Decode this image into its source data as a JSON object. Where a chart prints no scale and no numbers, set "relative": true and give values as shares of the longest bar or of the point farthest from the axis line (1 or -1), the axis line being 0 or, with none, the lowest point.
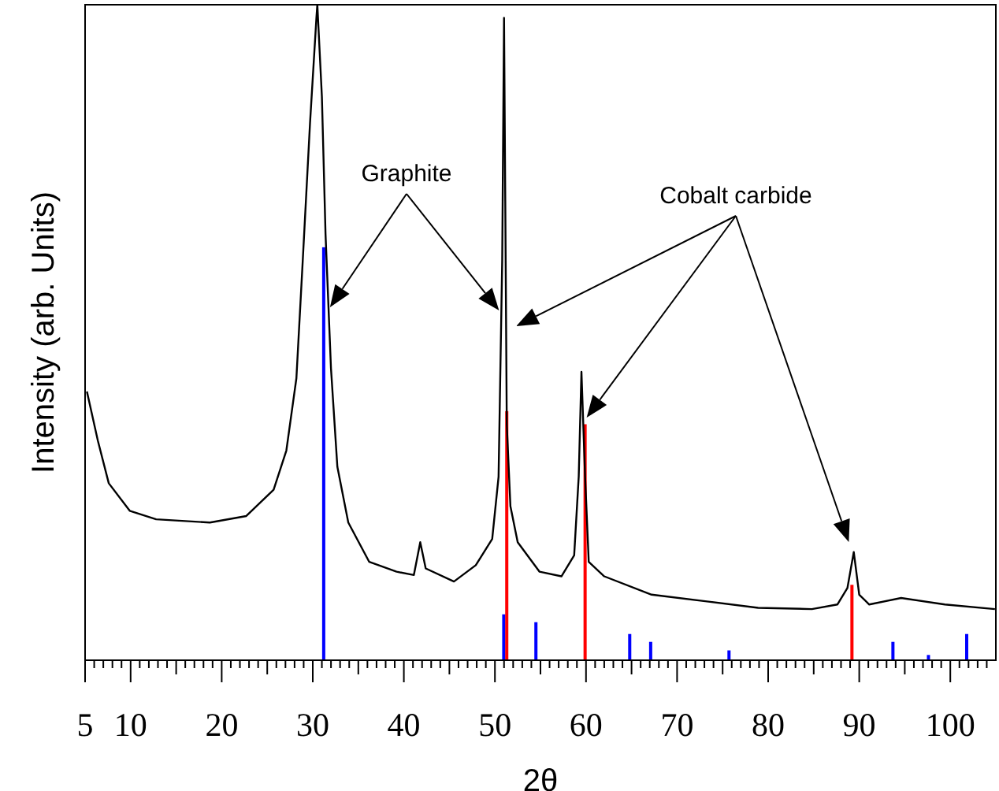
{
  "chart_data": {
    "type": "line",
    "relative": true,
    "xlabel": "2θ",
    "ylabel": "Intensity (arb. Units)",
    "xlim": [
      5,
      105
    ],
    "xticks": [
      5,
      10,
      20,
      30,
      40,
      50,
      60,
      70,
      80,
      90,
      100,
      {
        "value": 6,
        "label": null
      },
      {
        "value": 7,
        "label": null
      },
      {
        "value": 8,
        "label": null
      },
      {
        "value": 9,
        "label": null
      },
      {
        "value": 11,
        "label": null
      },
      {
        "value": 12,
        "label": null
      },
      {
        "value": 13,
        "label": null
      },
      {
        "value": 14,
        "label": null
      },
      {
        "value": 15,
        "label": null
      },
      {
        "value": 16,
        "label": null
      },
      {
        "value": 17,
        "label": null
      },
      {
        "value": 18,
        "label": null
      },
      {
        "value": 19,
        "label": null
      },
      {
        "value": 21,
        "label": null
      },
      {
        "value": 22,
        "label": null
      },
      {
        "value": 23,
        "label": null
      },
      {
        "value": 24,
        "label": null
      },
      {
        "value": 25,
        "label": null
      },
      {
        "value": 26,
        "label": null
      },
      {
        "value": 27,
        "label": null
      },
      {
        "value": 28,
        "label": null
      },
      {
        "value": 29,
        "label": null
      },
      {
        "value": 31,
        "label": null
      },
      {
        "value": 32,
        "label": null
      },
      {
        "value": 33,
        "label": null
      },
      {
        "value": 34,
        "label": null
      },
      {
        "value": 35,
        "label": null
      },
      {
        "value": 36,
        "label": null
      },
      {
        "value": 37,
        "label": null
      },
      {
        "value": 38,
        "label": null
      },
      {
        "value": 39,
        "label": null
      },
      {
        "value": 41,
        "label": null
      },
      {
        "value": 42,
        "label": null
      },
      {
        "value": 43,
        "label": null
      },
      {
        "value": 44,
        "label": null
      },
      {
        "value": 45,
        "label": null
      },
      {
        "value": 46,
        "label": null
      },
      {
        "value": 47,
        "label": null
      },
      {
        "value": 48,
        "label": null
      },
      {
        "value": 49,
        "label": null
      },
      {
        "value": 51,
        "label": null
      },
      {
        "value": 52,
        "label": null
      },
      {
        "value": 53,
        "label": null
      },
      {
        "value": 54,
        "label": null
      },
      {
        "value": 55,
        "label": null
      },
      {
        "value": 56,
        "label": null
      },
      {
        "value": 57,
        "label": null
      },
      {
        "value": 58,
        "label": null
      },
      {
        "value": 59,
        "label": null
      },
      {
        "value": 61,
        "label": null
      },
      {
        "value": 62,
        "label": null
      },
      {
        "value": 63,
        "label": null
      },
      {
        "value": 64,
        "label": null
      },
      {
        "value": 65,
        "label": null
      },
      {
        "value": 66,
        "label": null
      },
      {
        "value": 67,
        "label": null
      },
      {
        "value": 68,
        "label": null
      },
      {
        "value": 69,
        "label": null
      },
      {
        "value": 71,
        "label": null
      },
      {
        "value": 72,
        "label": null
      },
      {
        "value": 73,
        "label": null
      },
      {
        "value": 74,
        "label": null
      },
      {
        "value": 75,
        "label": null
      },
      {
        "value": 76,
        "label": null
      },
      {
        "value": 77,
        "label": null
      },
      {
        "value": 78,
        "label": null
      },
      {
        "value": 79,
        "label": null
      },
      {
        "value": 81,
        "label": null
      },
      {
        "value": 82,
        "label": null
      },
      {
        "value": 83,
        "label": null
      },
      {
        "value": 84,
        "label": null
      },
      {
        "value": 85,
        "label": null
      },
      {
        "value": 86,
        "label": null
      },
      {
        "value": 87,
        "label": null
      },
      {
        "value": 88,
        "label": null
      },
      {
        "value": 89,
        "label": null
      },
      {
        "value": 91,
        "label": null
      },
      {
        "value": 92,
        "label": null
      },
      {
        "value": 93,
        "label": null
      },
      {
        "value": 94,
        "label": null
      },
      {
        "value": 95,
        "label": null
      },
      {
        "value": 96,
        "label": null
      },
      {
        "value": 97,
        "label": null
      },
      {
        "value": 98,
        "label": null
      },
      {
        "value": 99,
        "label": null
      },
      {
        "value": 101,
        "label": null
      },
      {
        "value": 102,
        "label": null
      },
      {
        "value": 103,
        "label": null
      },
      {
        "value": 104,
        "label": null
      }
    ],
    "tick_labels": "x",
    "annotations": [
      "Graphite",
      "Cobalt carbide"
    ],
    "series": [
      {
        "color": "#000000",
        "x": [
          5.2,
          6.4,
          7.6,
          9.9,
          12.8,
          18.7,
          22.7,
          25.7,
          27.1,
          28.2,
          28.9,
          29.7,
          30.4,
          30.5,
          31.0,
          31.4,
          32.0,
          32.7,
          33.9,
          36.2,
          39.2,
          41.1,
          41.8,
          42.4,
          45.5,
          47.9,
          49.7,
          50.4,
          50.8,
          51.0,
          51.3,
          51.7,
          52.5,
          54.9,
          57.3,
          58.7,
          59.2,
          59.5,
          59.9,
          60.3,
          62.0,
          67.2,
          73.1,
          78.9,
          84.8,
          87.6,
          88.7,
          89.4,
          90.0,
          91.1,
          94.6,
          99.4,
          104.9
        ],
        "values": [
          0.41,
          0.335,
          0.27,
          0.228,
          0.215,
          0.21,
          0.22,
          0.26,
          0.32,
          0.43,
          0.61,
          0.82,
          0.98,
          1,
          0.86,
          0.65,
          0.445,
          0.295,
          0.21,
          0.15,
          0.135,
          0.13,
          0.18,
          0.14,
          0.12,
          0.145,
          0.185,
          0.28,
          0.61,
          0.98,
          0.36,
          0.235,
          0.18,
          0.135,
          0.128,
          0.16,
          0.28,
          0.44,
          0.28,
          0.15,
          0.128,
          0.1,
          0.09,
          0.08,
          0.078,
          0.085,
          0.11,
          0.165,
          0.1,
          0.085,
          0.095,
          0.085,
          0.078
        ]
      },
      {
        "type": "bar",
        "color": "#0000ff",
        "x": [
          31.2,
          50.97,
          54.5,
          64.8,
          67.1,
          75.7,
          93.7,
          97.6,
          101.8
        ],
        "values": [
          0.63,
          0.07,
          0.058,
          0.04,
          0.028,
          0.015,
          0.028,
          0.008,
          0.04
        ]
      },
      {
        "type": "bar",
        "color": "#ff0000",
        "x": [
          51.3,
          59.9,
          89.2
        ],
        "values": [
          0.38,
          0.36,
          0.115
        ]
      }
    ]
  }
}
